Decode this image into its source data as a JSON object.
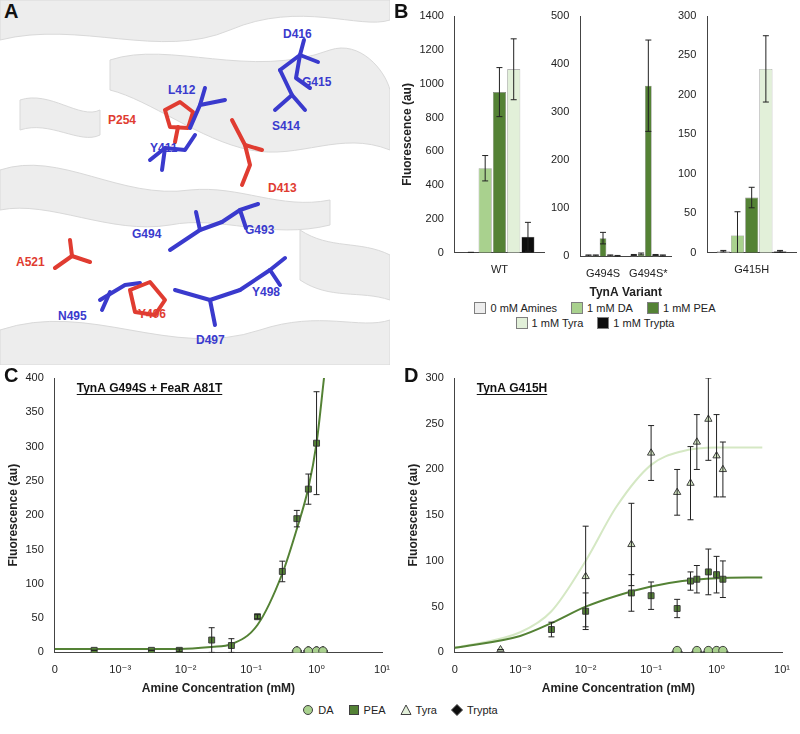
{
  "structure": {
    "panel": "A",
    "residues": [
      {
        "label": "P254",
        "color": "#e03c31"
      },
      {
        "label": "L412",
        "color": "#3a3acd"
      },
      {
        "label": "D416",
        "color": "#3a3acd"
      },
      {
        "label": "G415",
        "color": "#3a3acd"
      },
      {
        "label": "S414",
        "color": "#3a3acd"
      },
      {
        "label": "Y411",
        "color": "#3a3acd"
      },
      {
        "label": "D413",
        "color": "#e03c31"
      },
      {
        "label": "G494",
        "color": "#3a3acd"
      },
      {
        "label": "G493",
        "color": "#3a3acd"
      },
      {
        "label": "A521",
        "color": "#e03c31"
      },
      {
        "label": "N495",
        "color": "#3a3acd"
      },
      {
        "label": "Y496",
        "color": "#e03c31"
      },
      {
        "label": "Y498",
        "color": "#3a3acd"
      },
      {
        "label": "D497",
        "color": "#3a3acd"
      }
    ]
  },
  "chart_data": [
    {
      "type": "bar",
      "panel": "B",
      "y_label": "Fluorescence (au)",
      "categories": [
        "WT"
      ],
      "series": [
        {
          "name": "0 mM Amines",
          "color": "#ededed",
          "values": [
            2
          ],
          "errors": [
            1
          ]
        },
        {
          "name": "1 mM DA",
          "color": "#a9d18e",
          "values": [
            500
          ],
          "errors": [
            75
          ]
        },
        {
          "name": "1 mM PEA",
          "color": "#548235",
          "values": [
            950
          ],
          "errors": [
            145
          ]
        },
        {
          "name": "1 mM Tyra",
          "color": "#e2f0d9",
          "values": [
            1085
          ],
          "errors": [
            180
          ]
        },
        {
          "name": "1 mM Trypta",
          "color": "#0d0d0d",
          "values": [
            95
          ],
          "errors": [
            85
          ]
        }
      ],
      "ylim": [
        0,
        1400
      ],
      "yticks": [
        0,
        200,
        400,
        600,
        800,
        1000,
        1200,
        1400
      ],
      "grid": false
    },
    {
      "type": "bar",
      "x_label": "TynA Variant",
      "categories": [
        "G494S",
        "G494S*"
      ],
      "series": [
        {
          "name": "0 mM Amines",
          "color": "#ededed",
          "values": [
            2,
            3
          ],
          "errors": [
            1,
            1
          ]
        },
        {
          "name": "1 mM DA",
          "color": "#a9d18e",
          "values": [
            2,
            5
          ],
          "errors": [
            1,
            2
          ]
        },
        {
          "name": "1 mM PEA",
          "color": "#548235",
          "values": [
            38,
            355
          ],
          "errors": [
            12,
            95
          ]
        },
        {
          "name": "1 mM Tyra",
          "color": "#e2f0d9",
          "values": [
            2,
            3
          ],
          "errors": [
            1,
            1
          ]
        },
        {
          "name": "1 mM Trypta",
          "color": "#0d0d0d",
          "values": [
            1,
            2
          ],
          "errors": [
            1,
            1
          ]
        }
      ],
      "ylim": [
        0,
        500
      ],
      "yticks": [
        0,
        100,
        200,
        300,
        400,
        500
      ],
      "grid": false,
      "legend": "bottom"
    },
    {
      "type": "bar",
      "categories": [
        "G415H"
      ],
      "series": [
        {
          "name": "0 mM Amines",
          "color": "#ededed",
          "values": [
            2
          ],
          "errors": [
            1
          ]
        },
        {
          "name": "1 mM DA",
          "color": "#a9d18e",
          "values": [
            22
          ],
          "errors": [
            30
          ]
        },
        {
          "name": "1 mM PEA",
          "color": "#548235",
          "values": [
            70
          ],
          "errors": [
            13
          ]
        },
        {
          "name": "1 mM Tyra",
          "color": "#e2f0d9",
          "values": [
            233
          ],
          "errors": [
            42
          ]
        },
        {
          "name": "1 mM Trypta",
          "color": "#0d0d0d",
          "values": [
            2
          ],
          "errors": [
            1
          ]
        }
      ],
      "ylim": [
        0,
        300
      ],
      "yticks": [
        0,
        50,
        100,
        150,
        200,
        250,
        300
      ],
      "grid": false
    },
    {
      "type": "scatter",
      "panel": "C",
      "title": "TynA G494S + FeaR A81T",
      "x_label": "Amine Concentration (mM)",
      "y_label": "Fluorescence (au)",
      "log": "x",
      "xlim": [
        0,
        10
      ],
      "xticks": [
        0,
        {
          "value": 0.001,
          "label": "10⁻³"
        },
        {
          "value": 0.01,
          "label": "10⁻²"
        },
        {
          "value": 0.1,
          "label": "10⁻¹"
        },
        {
          "value": 1,
          "label": "10⁰"
        },
        {
          "value": 10,
          "label": "10¹"
        }
      ],
      "ylim": [
        0,
        400
      ],
      "yticks": [
        0,
        50,
        100,
        150,
        200,
        250,
        300,
        350,
        400
      ],
      "grid": false,
      "legend": "bottom",
      "series": [
        {
          "name": "DA",
          "color": "#a9d18e",
          "marker": "circle",
          "x": [
            0.5,
            0.75,
            1.0,
            1.25
          ],
          "values": [
            2,
            2,
            2,
            2
          ]
        },
        {
          "name": "PEA",
          "color": "#548235",
          "marker": "square",
          "x": [
            0.0004,
            0.003,
            0.008,
            0.025,
            0.05,
            0.125,
            0.3,
            0.5,
            0.75,
            1.0
          ],
          "values": [
            3,
            3,
            3,
            18,
            10,
            52,
            118,
            195,
            238,
            305
          ],
          "errors": [
            0,
            0,
            2,
            18,
            10,
            3,
            15,
            12,
            22,
            75
          ],
          "fit": {
            "x": [
              0,
              0.003,
              0.008,
              0.025,
              0.05,
              0.125,
              0.3,
              0.5,
              0.75,
              1.0,
              1.3
            ],
            "values": [
              5,
              5,
              5,
              8,
              12,
              40,
              115,
              180,
              240,
              305,
              400
            ]
          }
        },
        {
          "name": "Tyra",
          "color": "#e2f0d9",
          "marker": "triangle",
          "x": [
            0.5,
            0.75,
            1.0,
            1.25
          ],
          "values": [
            2,
            2,
            2,
            2
          ]
        },
        {
          "name": "Trypta",
          "color": "#0d0d0d",
          "marker": "diamond",
          "x": [
            0.5,
            0.75,
            1.0,
            1.25
          ],
          "values": [
            2,
            2,
            2,
            2
          ]
        }
      ]
    },
    {
      "type": "scatter",
      "panel": "D",
      "title": "TynA G415H",
      "x_label": "Amine Concentration (mM)",
      "y_label": "Fluorescence (au)",
      "log": "x",
      "xlim": [
        0,
        10
      ],
      "xticks": [
        0,
        {
          "value": 0.001,
          "label": "10⁻³"
        },
        {
          "value": 0.01,
          "label": "10⁻²"
        },
        {
          "value": 0.1,
          "label": "10⁻¹"
        },
        {
          "value": 1,
          "label": "10⁰"
        },
        {
          "value": 10,
          "label": "10¹"
        }
      ],
      "ylim": [
        0,
        300
      ],
      "yticks": [
        0,
        50,
        100,
        150,
        200,
        250,
        300
      ],
      "grid": false,
      "series": [
        {
          "name": "DA",
          "color": "#a9d18e",
          "marker": "circle",
          "x": [
            0.25,
            0.5,
            0.75,
            1.0,
            1.25
          ],
          "values": [
            2,
            2,
            2,
            2,
            2
          ]
        },
        {
          "name": "PEA",
          "color": "#548235",
          "marker": "square",
          "x": [
            0.003,
            0.01,
            0.05,
            0.1,
            0.25,
            0.4,
            0.5,
            0.75,
            1.0,
            1.25
          ],
          "values": [
            25,
            45,
            65,
            62,
            48,
            78,
            80,
            88,
            85,
            80
          ],
          "errors": [
            8,
            20,
            20,
            15,
            10,
            10,
            15,
            25,
            20,
            20
          ],
          "fit": {
            "x": [
              0,
              0.001,
              0.003,
              0.01,
              0.03,
              0.1,
              0.3,
              1,
              5
            ],
            "values": [
              5,
              18,
              32,
              50,
              62,
              72,
              78,
              81,
              82
            ]
          }
        },
        {
          "name": "Tyra",
          "color": "#d5e8c4",
          "marker": "triangle",
          "x": [
            0.0005,
            0.01,
            0.05,
            0.1,
            0.25,
            0.4,
            0.5,
            0.75,
            1.0,
            1.25
          ],
          "values": [
            3,
            83,
            118,
            218,
            175,
            185,
            230,
            255,
            215,
            200
          ],
          "errors": [
            0,
            55,
            45,
            30,
            25,
            40,
            30,
            45,
            45,
            30
          ],
          "fit": {
            "x": [
              0,
              0.001,
              0.003,
              0.01,
              0.03,
              0.1,
              0.3,
              1,
              5
            ],
            "values": [
              5,
              22,
              45,
              100,
              160,
              205,
              220,
              224,
              224
            ]
          }
        },
        {
          "name": "Trypta",
          "color": "#0d0d0d",
          "marker": "diamond",
          "x": [
            0.25,
            0.5,
            0.75,
            1.0,
            1.25
          ],
          "values": [
            1,
            1,
            1,
            1,
            1
          ]
        }
      ]
    }
  ]
}
